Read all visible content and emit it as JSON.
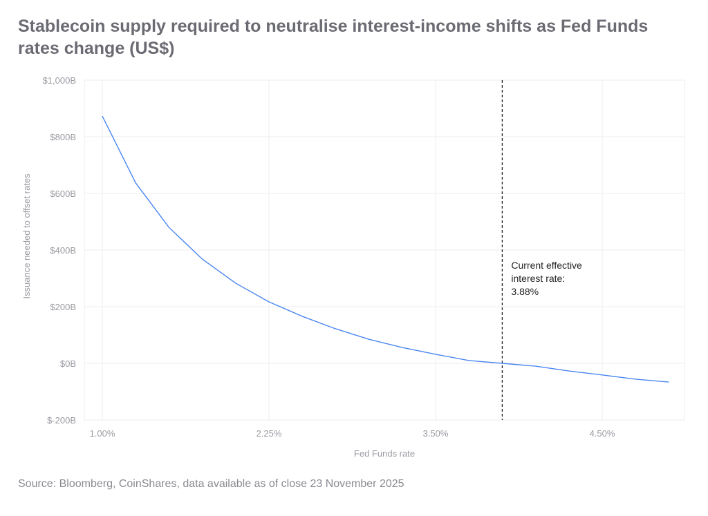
{
  "chart_data": {
    "type": "line",
    "title": "Stablecoin supply required to neutralise interest-income shifts as Fed Funds rates change (US$)",
    "xlabel": "Fed Funds rate",
    "ylabel": "Issuance needed to offset rates",
    "x": [
      "1.00%",
      "1.25%",
      "1.50%",
      "1.75%",
      "2.00%",
      "2.25%",
      "2.50%",
      "2.75%",
      "3.00%",
      "3.25%",
      "3.50%",
      "3.75%",
      "3.88%",
      "4.00%",
      "4.25%",
      "4.50%",
      "4.75%",
      "5.00%"
    ],
    "x_tick_labels": [
      "1.00%",
      "2.25%",
      "3.50%",
      "4.50%"
    ],
    "y_tick_labels": [
      "$1,000B",
      "$800B",
      "$600B",
      "$400B",
      "$200B",
      "$0B",
      "$-200B"
    ],
    "series": [
      {
        "values": [
          873,
          637,
          480,
          368,
          283,
          217,
          166,
          122,
          85,
          56,
          32,
          10,
          0,
          -10,
          -27,
          -41,
          -56,
          -66
        ]
      }
    ],
    "ylim": [
      -200,
      1000
    ],
    "y_unit": "US$ billions",
    "grid": true,
    "line_color": "#4a86f0",
    "annotation": {
      "x": "3.88%",
      "lines": [
        "Current effective",
        "interest rate:",
        "3.88%"
      ]
    }
  },
  "source": "Source: Bloomberg, CoinShares, data available as of close 23 November 2025"
}
